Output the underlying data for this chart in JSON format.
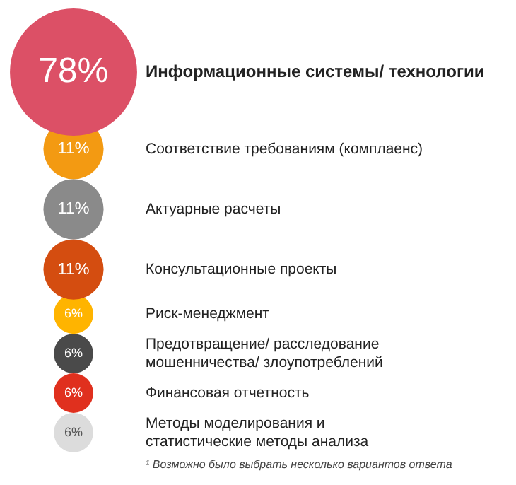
{
  "chart_data": {
    "type": "other",
    "categories": [
      "Информационные системы/ технологии",
      "Соответствие требованиям (комплаенс)",
      "Актуарные расчеты",
      "Консультационные проекты",
      "Риск-менеджмент",
      "Предотвращение/ расследование мошенничества/ злоупотреблений",
      "Финансовая отчетность",
      "Методы моделирования и статистические методы анализа"
    ],
    "values": [
      78,
      11,
      11,
      11,
      6,
      6,
      6,
      6
    ],
    "colors": [
      "#dc5066",
      "#f39a12",
      "#8a8a8a",
      "#d44d10",
      "#ffb400",
      "#4a4a4a",
      "#e0301e",
      "#dcdcdc"
    ],
    "value_labels": [
      "78%",
      "11%",
      "11%",
      "11%",
      "6%",
      "6%",
      "6%",
      "6%"
    ],
    "annotations": [
      "¹ Возможно было выбрать несколько вариантов ответа"
    ]
  }
}
